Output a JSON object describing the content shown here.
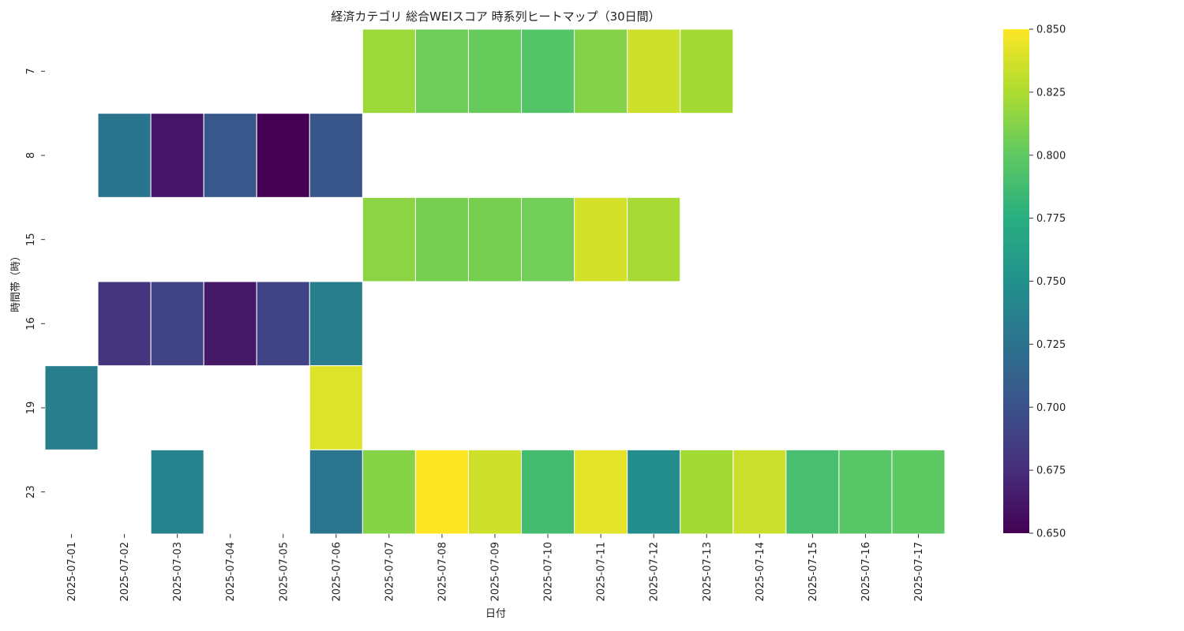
{
  "chart_data": {
    "type": "heatmap",
    "title": "経済カテゴリ 総合WEIスコア 時系列ヒートマップ（30日間）",
    "xlabel": "日付",
    "ylabel": "時間帯（時）",
    "x": [
      "2025-07-01",
      "2025-07-02",
      "2025-07-03",
      "2025-07-04",
      "2025-07-05",
      "2025-07-06",
      "2025-07-07",
      "2025-07-08",
      "2025-07-09",
      "2025-07-10",
      "2025-07-11",
      "2025-07-12",
      "2025-07-13",
      "2025-07-14",
      "2025-07-15",
      "2025-07-16",
      "2025-07-17"
    ],
    "y": [
      "7",
      "8",
      "15",
      "16",
      "19",
      "23"
    ],
    "values": [
      [
        null,
        null,
        null,
        null,
        null,
        null,
        0.82,
        0.805,
        0.803,
        0.795,
        0.812,
        0.835,
        0.822,
        null,
        null,
        null,
        null
      ],
      [
        null,
        0.727,
        0.662,
        0.705,
        0.65,
        0.703,
        null,
        null,
        null,
        null,
        null,
        null,
        null,
        null,
        null,
        null,
        null
      ],
      [
        null,
        null,
        null,
        null,
        null,
        null,
        0.815,
        0.808,
        0.808,
        0.806,
        0.837,
        0.823,
        null,
        null,
        null,
        null,
        null
      ],
      [
        null,
        0.68,
        0.69,
        0.663,
        0.69,
        0.735,
        null,
        null,
        null,
        null,
        null,
        null,
        null,
        null,
        null,
        null,
        null
      ],
      [
        0.735,
        null,
        null,
        null,
        null,
        0.84,
        null,
        null,
        null,
        null,
        null,
        null,
        null,
        null,
        null,
        null,
        null
      ],
      [
        null,
        null,
        0.738,
        null,
        null,
        0.728,
        0.813,
        0.85,
        0.835,
        0.788,
        0.842,
        0.747,
        0.822,
        0.834,
        0.79,
        0.797,
        0.8
      ]
    ],
    "colorbar": {
      "colormap": "viridis",
      "vmin": 0.65,
      "vmax": 0.85,
      "ticks": [
        "0.650",
        "0.675",
        "0.700",
        "0.725",
        "0.750",
        "0.775",
        "0.800",
        "0.825",
        "0.850"
      ]
    }
  }
}
